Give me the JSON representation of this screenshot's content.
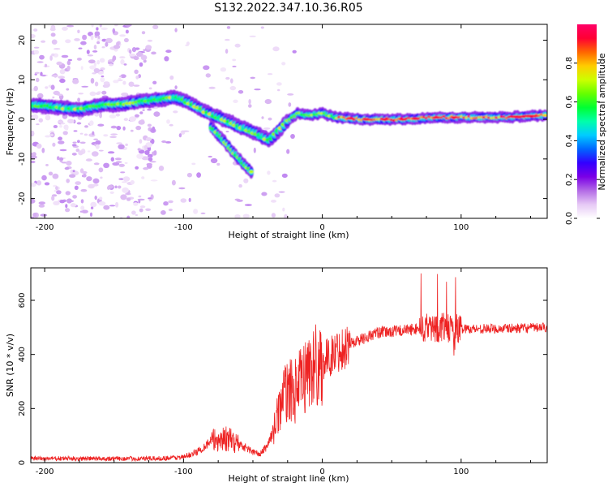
{
  "title": "S132.2022.347.10.36.R05",
  "chart_data": [
    {
      "type": "heatmap",
      "xlabel": "Height of straight line (km)",
      "ylabel": "Frequency (Hz)",
      "xlim": [
        -210,
        162
      ],
      "ylim": [
        -25,
        24
      ],
      "xticks": [
        -200,
        -100,
        0,
        100
      ],
      "yticks": [
        -20,
        -10,
        0,
        10,
        20
      ],
      "colorbar": {
        "label": "Normalized spectral amplitude",
        "range": [
          0,
          1
        ],
        "ticks": [
          "0.0",
          "0.2",
          "0.4",
          "0.6",
          "0.8"
        ],
        "colors": [
          "#ffffff",
          "#e6c9f5",
          "#b36be6",
          "#7a00e6",
          "#3300ff",
          "#0066ff",
          "#00ccff",
          "#00ffaa",
          "#00ff33",
          "#66ff00",
          "#ccff00",
          "#ffcc00",
          "#ff6600",
          "#ff0033",
          "#ff0066"
        ]
      },
      "ridge": [
        {
          "x": -205,
          "y": 3.5
        },
        {
          "x": -190,
          "y": 3.0
        },
        {
          "x": -175,
          "y": 2.5
        },
        {
          "x": -160,
          "y": 3.5
        },
        {
          "x": -140,
          "y": 4.0
        },
        {
          "x": -120,
          "y": 5.0
        },
        {
          "x": -105,
          "y": 5.5
        },
        {
          "x": -95,
          "y": 4.0
        },
        {
          "x": -85,
          "y": 2.0
        },
        {
          "x": -75,
          "y": 0.5
        },
        {
          "x": -65,
          "y": -1.0
        },
        {
          "x": -55,
          "y": -2.5
        },
        {
          "x": -45,
          "y": -4.0
        },
        {
          "x": -38,
          "y": -5.5
        },
        {
          "x": -32,
          "y": -3.0
        },
        {
          "x": -25,
          "y": -0.5
        },
        {
          "x": -18,
          "y": 1.5
        },
        {
          "x": -10,
          "y": 1.0
        },
        {
          "x": 0,
          "y": 1.5
        },
        {
          "x": 10,
          "y": 0.5
        },
        {
          "x": 30,
          "y": 0.0
        },
        {
          "x": 60,
          "y": 0.0
        },
        {
          "x": 80,
          "y": 0.5
        },
        {
          "x": 100,
          "y": 0.5
        },
        {
          "x": 130,
          "y": 0.5
        },
        {
          "x": 160,
          "y": 1.0
        }
      ],
      "branch": [
        {
          "x": -80,
          "y": -2.0
        },
        {
          "x": -72,
          "y": -5.0
        },
        {
          "x": -65,
          "y": -8.0
        },
        {
          "x": -60,
          "y": -10.0
        },
        {
          "x": -55,
          "y": -12.0
        },
        {
          "x": -50,
          "y": -13.5
        }
      ]
    },
    {
      "type": "line",
      "xlabel": "Height of straight line (km)",
      "ylabel": "SNR (10 * v/v)",
      "xlim": [
        -210,
        162
      ],
      "ylim": [
        0,
        720
      ],
      "xticks": [
        -200,
        -100,
        0,
        100
      ],
      "yticks": [
        0,
        200,
        400,
        600
      ],
      "color": "#ee2222",
      "envelope": [
        {
          "x": -210,
          "y": 15
        },
        {
          "x": -120,
          "y": 15
        },
        {
          "x": -100,
          "y": 20
        },
        {
          "x": -90,
          "y": 40
        },
        {
          "x": -80,
          "y": 80
        },
        {
          "x": -70,
          "y": 90
        },
        {
          "x": -60,
          "y": 70
        },
        {
          "x": -50,
          "y": 40
        },
        {
          "x": -45,
          "y": 30
        },
        {
          "x": -40,
          "y": 60
        },
        {
          "x": -35,
          "y": 120
        },
        {
          "x": -30,
          "y": 220
        },
        {
          "x": -25,
          "y": 270
        },
        {
          "x": -20,
          "y": 260
        },
        {
          "x": -15,
          "y": 300
        },
        {
          "x": -10,
          "y": 340
        },
        {
          "x": -5,
          "y": 360
        },
        {
          "x": 0,
          "y": 370
        },
        {
          "x": 5,
          "y": 390
        },
        {
          "x": 10,
          "y": 410
        },
        {
          "x": 20,
          "y": 440
        },
        {
          "x": 30,
          "y": 460
        },
        {
          "x": 40,
          "y": 480
        },
        {
          "x": 60,
          "y": 490
        },
        {
          "x": 80,
          "y": 500
        },
        {
          "x": 100,
          "y": 495
        },
        {
          "x": 130,
          "y": 495
        },
        {
          "x": 162,
          "y": 500
        }
      ]
    }
  ]
}
